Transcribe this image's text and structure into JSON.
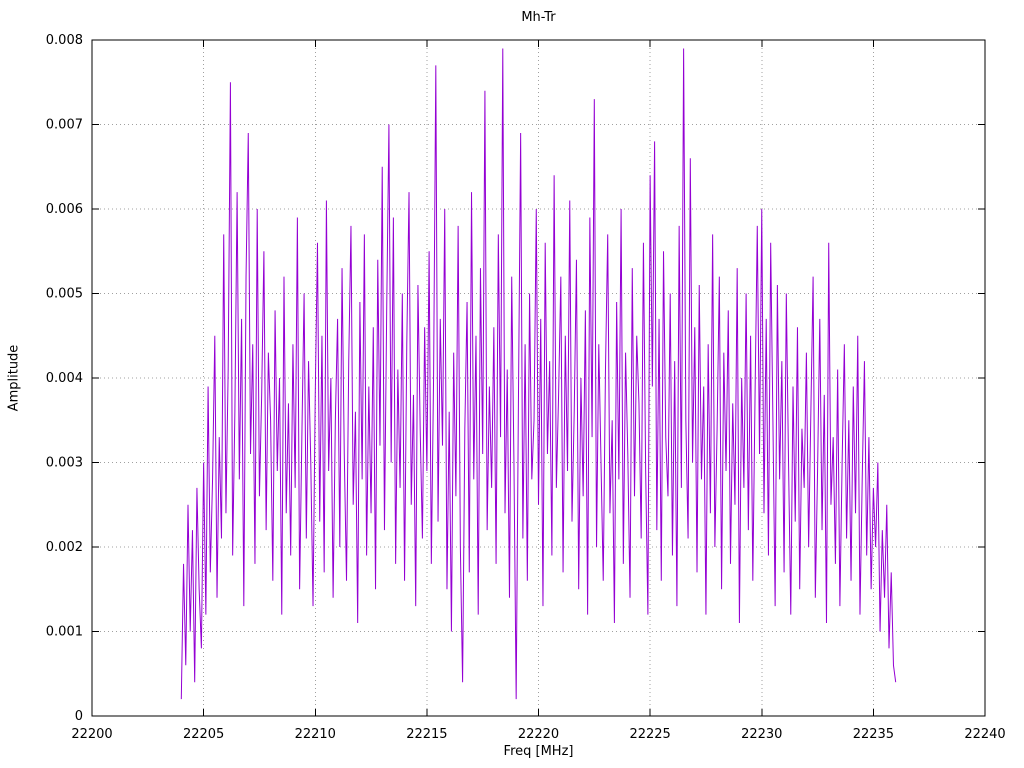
{
  "chart_data": {
    "type": "line",
    "title": "Mh-Tr",
    "xlabel": "Freq [MHz]",
    "ylabel": "Amplitude",
    "xlim": [
      22200,
      22240
    ],
    "ylim": [
      0,
      0.008
    ],
    "x_ticks": [
      22200,
      22205,
      22210,
      22215,
      22220,
      22225,
      22230,
      22235,
      22240
    ],
    "x_tick_labels": [
      "22200",
      "22205",
      "22210",
      "22215",
      "22220",
      "22225",
      "22230",
      "22235",
      "22240"
    ],
    "y_ticks": [
      0,
      0.001,
      0.002,
      0.003,
      0.004,
      0.005,
      0.006,
      0.007,
      0.008
    ],
    "y_tick_labels": [
      "0",
      "0.001",
      "0.002",
      "0.003",
      "0.004",
      "0.005",
      "0.006",
      "0.007",
      "0.008"
    ],
    "grid": "dotted",
    "grid_color": "#a0a0a0",
    "axis_color": "#000000",
    "background_color": "#ffffff",
    "legend": "none",
    "series": [
      {
        "name": "Mh-Tr",
        "color": "#9400D3",
        "x_start": 22204.0,
        "x_step": 0.1,
        "amplitude_scale": 0.0001,
        "values": [
          2,
          18,
          6,
          25,
          10,
          22,
          4,
          27,
          15,
          8,
          30,
          12,
          39,
          17,
          28,
          45,
          14,
          33,
          21,
          57,
          24,
          41,
          75,
          19,
          36,
          62,
          28,
          47,
          13,
          52,
          69,
          31,
          44,
          18,
          60,
          26,
          38,
          55,
          22,
          43,
          35,
          16,
          48,
          29,
          40,
          12,
          52,
          24,
          37,
          19,
          44,
          27,
          59,
          15,
          33,
          50,
          21,
          42,
          30,
          13,
          38,
          56,
          23,
          45,
          17,
          61,
          29,
          40,
          14,
          35,
          47,
          20,
          53,
          31,
          16,
          42,
          58,
          25,
          36,
          11,
          49,
          28,
          57,
          19,
          39,
          24,
          46,
          15,
          54,
          32,
          65,
          22,
          48,
          70,
          30,
          59,
          18,
          41,
          27,
          50,
          16,
          44,
          62,
          25,
          38,
          13,
          51,
          34,
          21,
          46,
          29,
          55,
          18,
          40,
          77,
          23,
          47,
          32,
          60,
          15,
          36,
          10,
          43,
          26,
          58,
          20,
          4,
          34,
          49,
          17,
          62,
          28,
          45,
          12,
          53,
          31,
          74,
          22,
          39,
          27,
          46,
          18,
          57,
          33,
          79,
          24,
          41,
          14,
          52,
          30,
          2,
          37,
          69,
          21,
          44,
          16,
          50,
          28,
          35,
          60,
          25,
          47,
          13,
          56,
          31,
          42,
          19,
          64,
          27,
          38,
          52,
          17,
          45,
          29,
          61,
          23,
          36,
          54,
          15,
          40,
          26,
          48,
          12,
          59,
          33,
          73,
          20,
          44,
          30,
          16,
          41,
          57,
          24,
          35,
          11,
          49,
          28,
          60,
          18,
          43,
          31,
          14,
          53,
          26,
          45,
          37,
          21,
          56,
          29,
          12,
          64,
          39,
          68,
          22,
          47,
          16,
          55,
          33,
          26,
          50,
          19,
          42,
          13,
          58,
          27,
          79,
          35,
          21,
          66,
          30,
          46,
          17,
          51,
          28,
          39,
          12,
          44,
          24,
          57,
          20,
          34,
          52,
          15,
          43,
          29,
          48,
          18,
          37,
          25,
          53,
          11,
          40,
          27,
          50,
          22,
          45,
          16,
          38,
          58,
          31,
          60,
          24,
          47,
          19,
          56,
          35,
          13,
          51,
          28,
          42,
          17,
          50,
          30,
          12,
          39,
          23,
          46,
          15,
          34,
          27,
          43,
          20,
          36,
          52,
          14,
          29,
          47,
          22,
          38,
          11,
          56,
          25,
          33,
          18,
          41,
          13,
          30,
          44,
          21,
          35,
          16,
          39,
          24,
          45,
          12,
          28,
          42,
          19,
          33,
          15,
          27,
          20,
          30,
          10,
          22,
          14,
          25,
          8,
          17,
          6,
          4
        ]
      }
    ]
  }
}
